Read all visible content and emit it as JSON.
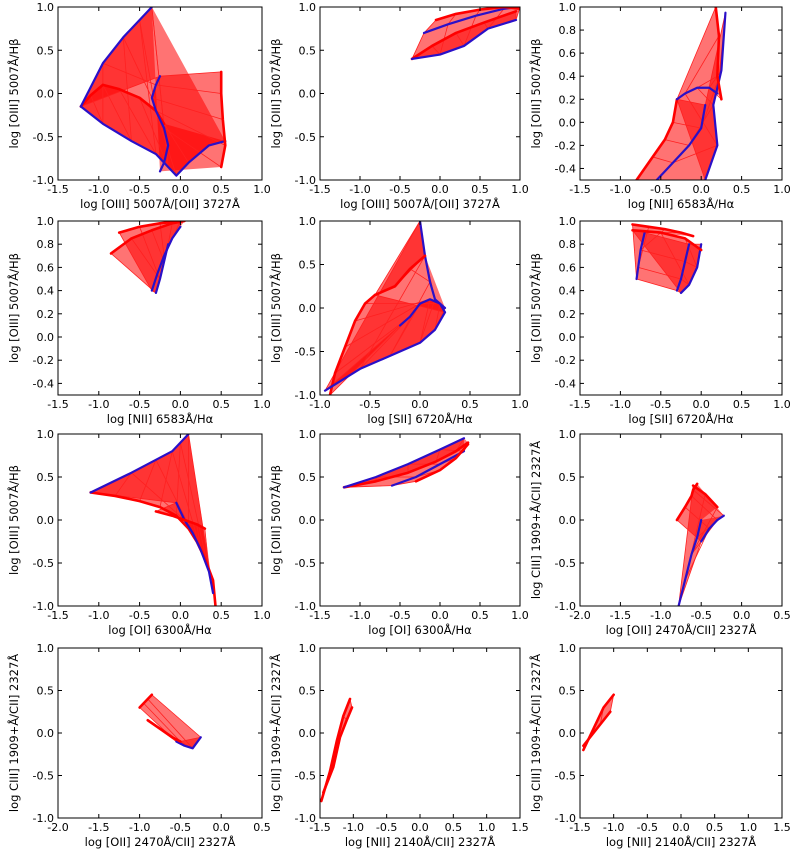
{
  "colors": {
    "fan": "#ff0000",
    "ribs": "#ff2020",
    "edge": "#2a10c8",
    "background": "#ffffff",
    "axes": "#000000"
  },
  "chart_data": [
    {
      "type": "line",
      "xlabel": "log [OIII] 5007Å/[OII] 3727Å",
      "ylabel": "log [OIII] 5007Å/Hβ",
      "xlim": [
        -1.5,
        1.0
      ],
      "ylim": [
        -1.0,
        1.0
      ],
      "xticks": [
        "-1.5",
        "-1.0",
        "-0.5",
        "0.0",
        "0.5",
        "1.0"
      ],
      "yticks": [
        "-1.0",
        "-0.5",
        "0.0",
        "0.5",
        "1.0"
      ],
      "series": [
        {
          "x": [
            -1.22,
            -1.1,
            -0.95,
            -0.75,
            -0.5,
            -0.3,
            -0.2
          ],
          "y": [
            -0.15,
            -0.02,
            0.1,
            0.05,
            -0.05,
            -0.2,
            -0.35
          ]
        },
        {
          "x": [
            -1.22,
            -0.95,
            -0.6,
            -0.3,
            -0.15,
            -0.05,
            0.1,
            0.35,
            0.55
          ],
          "y": [
            -0.15,
            -0.35,
            -0.55,
            -0.7,
            -0.85,
            -0.95,
            -0.8,
            -0.6,
            -0.55
          ]
        },
        {
          "x": [
            -1.22,
            -0.95,
            -0.7,
            -0.5,
            -0.35
          ],
          "y": [
            -0.15,
            0.35,
            0.65,
            0.85,
            1.0
          ]
        },
        {
          "x": [
            -0.25,
            -0.3,
            -0.35,
            -0.3,
            -0.2,
            -0.15,
            -0.2,
            -0.25
          ],
          "y": [
            0.2,
            0.1,
            -0.05,
            -0.2,
            -0.4,
            -0.6,
            -0.8,
            -0.9
          ]
        },
        {
          "x": [
            0.5,
            0.5,
            0.52,
            0.55,
            0.5
          ],
          "y": [
            0.25,
            0.0,
            -0.3,
            -0.6,
            -0.85
          ]
        }
      ]
    },
    {
      "type": "line",
      "xlabel": "log [OIII] 5007Å/[OII] 3727Å",
      "ylabel": "log [OIII] 5007Å/Hβ",
      "xlim": [
        -1.5,
        1.0
      ],
      "ylim": [
        -1.0,
        1.0
      ],
      "xticks": [
        "-1.5",
        "-1.0",
        "-0.5",
        "0.0",
        "0.5",
        "1.0"
      ],
      "yticks": [
        "-1.0",
        "-0.5",
        "0.0",
        "0.5",
        "1.0"
      ],
      "series": [
        {
          "x": [
            -0.35,
            -0.1,
            0.2,
            0.55,
            0.95
          ],
          "y": [
            0.4,
            0.55,
            0.7,
            0.82,
            0.95
          ]
        },
        {
          "x": [
            -0.35,
            0.0,
            0.3,
            0.6,
            0.95
          ],
          "y": [
            0.4,
            0.45,
            0.55,
            0.75,
            0.85
          ]
        },
        {
          "x": [
            -0.2,
            0.1,
            0.45,
            0.8,
            1.0
          ],
          "y": [
            0.7,
            0.8,
            0.9,
            0.98,
            1.0
          ]
        },
        {
          "x": [
            -0.05,
            0.2,
            0.5,
            0.8,
            1.0
          ],
          "y": [
            0.85,
            0.92,
            0.97,
            1.0,
            0.98
          ]
        }
      ]
    },
    {
      "type": "line",
      "xlabel": "log [NII] 6583Å/Hα",
      "ylabel": "log [OIII] 5007Å/Hβ",
      "xlim": [
        -1.5,
        1.0
      ],
      "ylim": [
        -0.5,
        1.0
      ],
      "xticks": [
        "-1.5",
        "-1.0",
        "-0.5",
        "0.0",
        "0.5",
        "1.0"
      ],
      "yticks": [
        "-0.4",
        "-0.2",
        "0.0",
        "0.2",
        "0.4",
        "0.6",
        "0.8",
        "1.0"
      ],
      "series": [
        {
          "x": [
            -0.8,
            -0.6,
            -0.45,
            -0.35,
            -0.3
          ],
          "y": [
            -0.5,
            -0.3,
            -0.15,
            0.0,
            0.2
          ]
        },
        {
          "x": [
            -0.55,
            -0.35,
            -0.15,
            0.0,
            0.05
          ],
          "y": [
            -0.5,
            -0.35,
            -0.2,
            -0.05,
            0.15
          ]
        },
        {
          "x": [
            0.05,
            0.2,
            0.15,
            0.25,
            0.3
          ],
          "y": [
            -0.5,
            -0.2,
            0.15,
            0.45,
            0.95
          ]
        },
        {
          "x": [
            -0.3,
            -0.2,
            -0.05,
            0.1,
            0.2
          ],
          "y": [
            0.2,
            0.25,
            0.3,
            0.3,
            0.25
          ]
        },
        {
          "x": [
            0.18,
            0.22,
            0.2,
            0.25
          ],
          "y": [
            1.0,
            0.75,
            0.4,
            0.2
          ]
        }
      ]
    },
    {
      "type": "line",
      "xlabel": "log [NII] 6583Å/Hα",
      "ylabel": "log [OIII] 5007Å/Hβ",
      "xlim": [
        -1.5,
        1.0
      ],
      "ylim": [
        -0.5,
        1.0
      ],
      "xticks": [
        "-1.5",
        "-1.0",
        "-0.5",
        "0.0",
        "0.5",
        "1.0"
      ],
      "yticks": [
        "-0.4",
        "-0.2",
        "0.0",
        "0.2",
        "0.4",
        "0.6",
        "0.8",
        "1.0"
      ],
      "series": [
        {
          "x": [
            -0.85,
            -0.6,
            -0.35,
            -0.1,
            0.05
          ],
          "y": [
            0.72,
            0.85,
            0.92,
            0.98,
            1.0
          ]
        },
        {
          "x": [
            -0.3,
            -0.25,
            -0.2,
            -0.15
          ],
          "y": [
            0.38,
            0.5,
            0.65,
            0.8
          ]
        },
        {
          "x": [
            -0.35,
            -0.28,
            -0.2,
            -0.1,
            0.0
          ],
          "y": [
            0.4,
            0.55,
            0.7,
            0.85,
            0.95
          ]
        },
        {
          "x": [
            -0.75,
            -0.5,
            -0.25,
            0.0
          ],
          "y": [
            0.9,
            0.95,
            0.98,
            1.0
          ]
        }
      ]
    },
    {
      "type": "line",
      "xlabel": "log [SII] 6720Å/Hα",
      "ylabel": "log [OIII] 5007Å/Hβ",
      "xlim": [
        -1.0,
        1.0
      ],
      "ylim": [
        -1.0,
        1.0
      ],
      "xticks": [
        "-1.0",
        "-0.5",
        "0.0",
        "0.5",
        "1.0"
      ],
      "yticks": [
        "-1.0",
        "-0.5",
        "0.0",
        "0.5",
        "1.0"
      ],
      "series": [
        {
          "x": [
            -0.9,
            -0.85,
            -0.75,
            -0.65,
            -0.55,
            -0.45
          ],
          "y": [
            -1.0,
            -0.75,
            -0.45,
            -0.15,
            0.05,
            0.15
          ]
        },
        {
          "x": [
            -0.2,
            -0.1,
            0.0,
            0.1,
            0.2,
            0.25
          ],
          "y": [
            -0.2,
            -0.1,
            0.05,
            0.1,
            0.05,
            -0.05
          ]
        },
        {
          "x": [
            -0.95,
            -0.6,
            -0.3,
            0.0,
            0.15,
            0.25
          ],
          "y": [
            -0.95,
            -0.7,
            -0.55,
            -0.4,
            -0.25,
            -0.05
          ]
        },
        {
          "x": [
            0.0,
            0.05,
            0.1,
            0.15,
            0.25
          ],
          "y": [
            1.0,
            0.6,
            0.3,
            0.1,
            0.0
          ]
        },
        {
          "x": [
            -0.45,
            -0.25,
            -0.1,
            0.05
          ],
          "y": [
            0.15,
            0.25,
            0.45,
            0.6
          ]
        }
      ]
    },
    {
      "type": "line",
      "xlabel": "log [SII] 6720Å/Hα",
      "ylabel": "log [OIII] 5007Å/Hβ",
      "xlim": [
        -1.5,
        1.0
      ],
      "ylim": [
        -0.5,
        1.0
      ],
      "xticks": [
        "-1.5",
        "-1.0",
        "-0.5",
        "0.0",
        "0.5",
        "1.0"
      ],
      "yticks": [
        "-0.4",
        "-0.2",
        "0.0",
        "0.2",
        "0.4",
        "0.6",
        "0.8",
        "1.0"
      ],
      "series": [
        {
          "x": [
            -0.85,
            -0.65,
            -0.45,
            -0.25,
            -0.1
          ],
          "y": [
            0.97,
            0.95,
            0.93,
            0.9,
            0.87
          ]
        },
        {
          "x": [
            -0.8,
            -0.78,
            -0.75,
            -0.7
          ],
          "y": [
            0.5,
            0.6,
            0.75,
            0.9
          ]
        },
        {
          "x": [
            -0.3,
            -0.25,
            -0.2,
            -0.15
          ],
          "y": [
            0.4,
            0.5,
            0.65,
            0.8
          ]
        },
        {
          "x": [
            -0.25,
            -0.15,
            -0.05,
            0.0
          ],
          "y": [
            0.38,
            0.45,
            0.6,
            0.8
          ]
        },
        {
          "x": [
            -0.85,
            -0.5,
            -0.2,
            0.0
          ],
          "y": [
            0.92,
            0.9,
            0.85,
            0.75
          ]
        }
      ]
    },
    {
      "type": "line",
      "xlabel": "log [OI] 6300Å/Hα",
      "ylabel": "log [OIII] 5007Å/Hβ",
      "xlim": [
        -1.5,
        1.0
      ],
      "ylim": [
        -1.0,
        1.0
      ],
      "xticks": [
        "-1.5",
        "-1.0",
        "-0.5",
        "0.0",
        "0.5",
        "1.0"
      ],
      "yticks": [
        "-1.0",
        "-0.5",
        "0.0",
        "0.5",
        "1.0"
      ],
      "series": [
        {
          "x": [
            -1.1,
            -0.8,
            -0.5,
            -0.25,
            -0.05,
            0.1,
            0.2,
            0.3,
            0.4,
            0.43
          ],
          "y": [
            0.32,
            0.28,
            0.22,
            0.15,
            0.05,
            -0.1,
            -0.25,
            -0.45,
            -0.7,
            -1.0
          ]
        },
        {
          "x": [
            -1.1,
            -0.6,
            -0.3,
            -0.1,
            0.0,
            0.1
          ],
          "y": [
            0.32,
            0.55,
            0.7,
            0.8,
            0.9,
            1.0
          ]
        },
        {
          "x": [
            -0.05,
            0.05,
            0.15,
            0.25,
            0.35,
            0.4
          ],
          "y": [
            0.2,
            0.0,
            -0.15,
            -0.35,
            -0.6,
            -0.85
          ]
        },
        {
          "x": [
            -0.3,
            -0.1,
            0.05,
            0.2,
            0.3
          ],
          "y": [
            0.1,
            0.05,
            0.0,
            -0.05,
            -0.1
          ]
        }
      ]
    },
    {
      "type": "line",
      "xlabel": "log [OI] 6300Å/Hα",
      "ylabel": "log [OIII] 5007Å/Hβ",
      "xlim": [
        -1.5,
        1.0
      ],
      "ylim": [
        -1.0,
        1.0
      ],
      "xticks": [
        "-1.5",
        "-1.0",
        "-0.5",
        "0.0",
        "0.5",
        "1.0"
      ],
      "yticks": [
        "-1.0",
        "-0.5",
        "0.0",
        "0.5",
        "1.0"
      ],
      "series": [
        {
          "x": [
            -1.2,
            -0.8,
            -0.4,
            -0.05,
            0.2,
            0.35
          ],
          "y": [
            0.38,
            0.45,
            0.55,
            0.68,
            0.8,
            0.9
          ]
        },
        {
          "x": [
            -1.2,
            -0.8,
            -0.4,
            0.0,
            0.3
          ],
          "y": [
            0.38,
            0.5,
            0.65,
            0.82,
            0.95
          ]
        },
        {
          "x": [
            -0.6,
            -0.3,
            0.0,
            0.3
          ],
          "y": [
            0.4,
            0.5,
            0.65,
            0.8
          ]
        },
        {
          "x": [
            -0.3,
            0.0,
            0.2,
            0.35
          ],
          "y": [
            0.45,
            0.58,
            0.72,
            0.88
          ]
        }
      ]
    },
    {
      "type": "line",
      "xlabel": "log [OII] 2470Å/CII] 2327Å",
      "ylabel": "log CIII] 1909+Å/CII] 2327Å",
      "xlim": [
        -2.0,
        0.5
      ],
      "ylim": [
        -1.0,
        1.0
      ],
      "xticks": [
        "-2.0",
        "-1.5",
        "-1.0",
        "-0.5",
        "0.0",
        "0.5"
      ],
      "yticks": [
        "-1.0",
        "-0.5",
        "0.0",
        "0.5",
        "1.0"
      ],
      "series": [
        {
          "x": [
            -0.8,
            -0.7,
            -0.62,
            -0.6,
            -0.55
          ],
          "y": [
            0.0,
            0.15,
            0.28,
            0.35,
            0.42
          ]
        },
        {
          "x": [
            -0.5,
            -0.4,
            -0.3,
            -0.22
          ],
          "y": [
            -0.25,
            -0.1,
            0.0,
            0.05
          ]
        },
        {
          "x": [
            -0.78,
            -0.7,
            -0.62,
            -0.55,
            -0.5
          ],
          "y": [
            -1.0,
            -0.7,
            -0.4,
            -0.2,
            0.0
          ]
        },
        {
          "x": [
            -0.6,
            -0.45,
            -0.3
          ],
          "y": [
            0.4,
            0.3,
            0.15
          ]
        }
      ]
    },
    {
      "type": "line",
      "xlabel": "log [OII] 2470Å/CII] 2327Å",
      "ylabel": "log CIII] 1909+Å/CII] 2327Å",
      "xlim": [
        -2.0,
        0.5
      ],
      "ylim": [
        -1.0,
        1.0
      ],
      "xticks": [
        "-2.0",
        "-1.5",
        "-1.0",
        "-0.5",
        "0.0",
        "0.5"
      ],
      "yticks": [
        "-1.0",
        "-0.5",
        "0.0",
        "0.5",
        "1.0"
      ],
      "series": [
        {
          "x": [
            -1.0,
            -0.95,
            -0.9,
            -0.85
          ],
          "y": [
            0.3,
            0.35,
            0.4,
            0.45
          ]
        },
        {
          "x": [
            -0.55,
            -0.45,
            -0.35,
            -0.25
          ],
          "y": [
            -0.1,
            -0.15,
            -0.18,
            -0.05
          ]
        },
        {
          "x": [
            -0.9,
            -0.75,
            -0.6,
            -0.5
          ],
          "y": [
            0.15,
            0.05,
            -0.05,
            -0.1
          ]
        }
      ]
    },
    {
      "type": "line",
      "xlabel": "log [NII] 2140Å/CII] 2327Å",
      "ylabel": "log CIII] 1909+Å/CII] 2327Å",
      "xlim": [
        -1.5,
        1.5
      ],
      "ylim": [
        -1.0,
        1.0
      ],
      "xticks": [
        "-1.5",
        "-1.0",
        "-0.5",
        "0.0",
        "0.5",
        "1.0",
        "1.5"
      ],
      "yticks": [
        "-1.0",
        "-0.5",
        "0.0",
        "0.5",
        "1.0"
      ],
      "series": [
        {
          "x": [
            -1.48,
            -1.35,
            -1.25,
            -1.15,
            -1.05
          ],
          "y": [
            -0.8,
            -0.45,
            -0.1,
            0.2,
            0.4
          ]
        },
        {
          "x": [
            -1.45,
            -1.3,
            -1.2,
            -1.1,
            -1.02
          ],
          "y": [
            -0.7,
            -0.4,
            -0.05,
            0.15,
            0.3
          ]
        }
      ]
    },
    {
      "type": "line",
      "xlabel": "log [NII] 2140Å/CII] 2327Å",
      "ylabel": "log CIII] 1909+Å/CII] 2327Å",
      "xlim": [
        -1.5,
        1.5
      ],
      "ylim": [
        -1.0,
        1.0
      ],
      "xticks": [
        "-1.5",
        "-1.0",
        "-0.5",
        "0.0",
        "0.5",
        "1.0",
        "1.5"
      ],
      "yticks": [
        "-1.0",
        "-0.5",
        "0.0",
        "0.5",
        "1.0"
      ],
      "series": [
        {
          "x": [
            -1.45,
            -1.3,
            -1.15,
            -1.0
          ],
          "y": [
            -0.2,
            0.05,
            0.3,
            0.45
          ]
        },
        {
          "x": [
            -1.45,
            -1.35,
            -1.2,
            -1.05
          ],
          "y": [
            -0.15,
            -0.05,
            0.1,
            0.25
          ]
        }
      ]
    }
  ]
}
